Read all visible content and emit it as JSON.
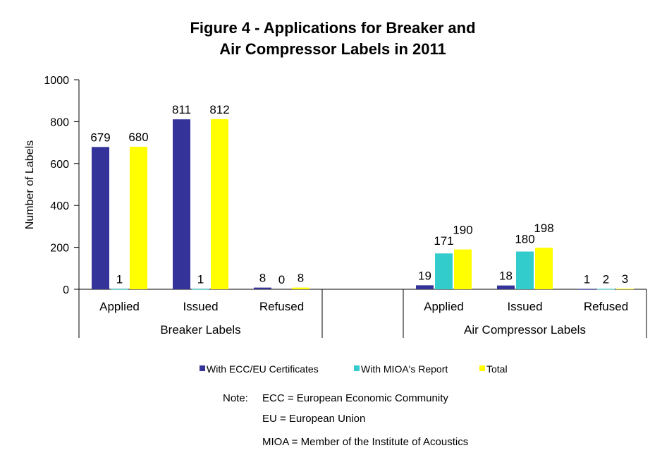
{
  "chart_data": {
    "type": "bar",
    "title": [
      "Figure 4 - Applications for Breaker and",
      "Air Compressor Labels in 2011"
    ],
    "ylabel": "Number of Labels",
    "ylim": [
      0,
      1000
    ],
    "yticks": [
      0,
      200,
      400,
      600,
      800,
      1000
    ],
    "grid": false,
    "legend_position": "bottom",
    "groups": [
      {
        "label": "Breaker Labels",
        "categories": [
          "Applied",
          "Issued",
          "Refused"
        ]
      },
      {
        "label": "",
        "categories": [
          ""
        ]
      },
      {
        "label": "Air Compressor Labels",
        "categories": [
          "Applied",
          "Issued",
          "Refused"
        ]
      }
    ],
    "series": [
      {
        "name": "With ECC/EU Certificates",
        "color": "#333399",
        "values": [
          679,
          811,
          8,
          null,
          19,
          18,
          1
        ]
      },
      {
        "name": "With MIOA's Report",
        "color": "#33CCCC",
        "values": [
          1,
          1,
          0,
          null,
          171,
          180,
          2
        ]
      },
      {
        "name": "Total",
        "color": "#FFFF00",
        "values": [
          680,
          812,
          8,
          null,
          190,
          198,
          3
        ]
      }
    ]
  },
  "notes": {
    "prefix": "Note:",
    "lines": [
      "ECC = European Economic Community",
      "EU = European Union",
      "MIOA = Member of the Institute of Acoustics"
    ]
  }
}
